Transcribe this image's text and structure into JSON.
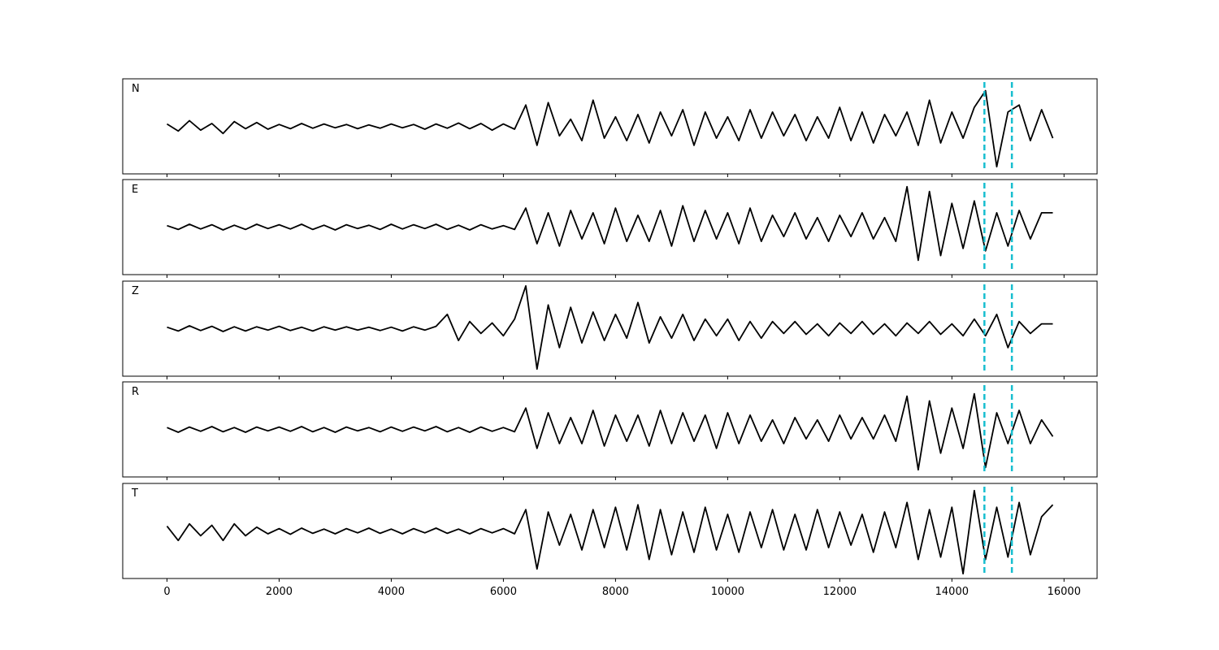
{
  "chart_data": [
    {
      "type": "line",
      "label": "N",
      "color": "#000000",
      "xlim": [
        -790,
        16590
      ],
      "ylim": [
        -1,
        1
      ],
      "vlines": [
        14580,
        15070
      ],
      "vline_color": "#17becf",
      "x": [
        0,
        200,
        400,
        600,
        800,
        1000,
        1200,
        1400,
        1600,
        1800,
        2000,
        2200,
        2400,
        2600,
        2800,
        3000,
        3200,
        3400,
        3600,
        3800,
        4000,
        4200,
        4400,
        4600,
        4800,
        5000,
        5200,
        5400,
        5600,
        5800,
        6000,
        6200,
        6400,
        6600,
        6800,
        7000,
        7200,
        7400,
        7600,
        7800,
        8000,
        8200,
        8400,
        8600,
        8800,
        9000,
        9200,
        9400,
        9600,
        9800,
        10000,
        10200,
        10400,
        10600,
        10800,
        11000,
        11200,
        11400,
        11600,
        11800,
        12000,
        12200,
        12400,
        12600,
        12800,
        13000,
        13200,
        13400,
        13600,
        13800,
        14000,
        14200,
        14400,
        14600,
        14800,
        15000,
        15200,
        15400,
        15600,
        15800
      ],
      "values": [
        0.05,
        -0.1,
        0.12,
        -0.08,
        0.06,
        -0.15,
        0.1,
        -0.05,
        0.08,
        -0.06,
        0.04,
        -0.05,
        0.06,
        -0.04,
        0.05,
        -0.03,
        0.04,
        -0.05,
        0.03,
        -0.04,
        0.05,
        -0.03,
        0.04,
        -0.06,
        0.05,
        -0.04,
        0.07,
        -0.05,
        0.06,
        -0.08,
        0.05,
        -0.06,
        0.45,
        -0.4,
        0.5,
        -0.2,
        0.15,
        -0.3,
        0.55,
        -0.25,
        0.2,
        -0.3,
        0.25,
        -0.35,
        0.3,
        -0.2,
        0.35,
        -0.4,
        0.3,
        -0.25,
        0.2,
        -0.3,
        0.35,
        -0.25,
        0.3,
        -0.2,
        0.25,
        -0.3,
        0.2,
        -0.25,
        0.4,
        -0.3,
        0.3,
        -0.35,
        0.25,
        -0.2,
        0.3,
        -0.4,
        0.55,
        -0.35,
        0.3,
        -0.25,
        0.4,
        0.75,
        -0.85,
        0.3,
        0.45,
        -0.3,
        0.35,
        -0.25
      ]
    },
    {
      "type": "line",
      "label": "E",
      "color": "#000000",
      "xlim": [
        -790,
        16590
      ],
      "ylim": [
        -1,
        1
      ],
      "vlines": [
        14580,
        15070
      ],
      "vline_color": "#17becf",
      "x": [
        0,
        200,
        400,
        600,
        800,
        1000,
        1200,
        1400,
        1600,
        1800,
        2000,
        2200,
        2400,
        2600,
        2800,
        3000,
        3200,
        3400,
        3600,
        3800,
        4000,
        4200,
        4400,
        4600,
        4800,
        5000,
        5200,
        5400,
        5600,
        5800,
        6000,
        6200,
        6400,
        6600,
        6800,
        7000,
        7200,
        7400,
        7600,
        7800,
        8000,
        8200,
        8400,
        8600,
        8800,
        9000,
        9200,
        9400,
        9600,
        9800,
        10000,
        10200,
        10400,
        10600,
        10800,
        11000,
        11200,
        11400,
        11600,
        11800,
        12000,
        12200,
        12400,
        12600,
        12800,
        13000,
        13200,
        13400,
        13600,
        13800,
        14000,
        14200,
        14400,
        14600,
        14800,
        15000,
        15200,
        15400,
        15600,
        15800
      ],
      "values": [
        0.03,
        -0.05,
        0.06,
        -0.04,
        0.05,
        -0.06,
        0.04,
        -0.05,
        0.06,
        -0.03,
        0.05,
        -0.04,
        0.06,
        -0.05,
        0.04,
        -0.06,
        0.05,
        -0.03,
        0.04,
        -0.05,
        0.06,
        -0.04,
        0.05,
        -0.03,
        0.06,
        -0.05,
        0.04,
        -0.06,
        0.05,
        -0.04,
        0.03,
        -0.05,
        0.4,
        -0.35,
        0.3,
        -0.4,
        0.35,
        -0.25,
        0.3,
        -0.35,
        0.4,
        -0.3,
        0.25,
        -0.3,
        0.35,
        -0.4,
        0.45,
        -0.3,
        0.35,
        -0.25,
        0.3,
        -0.35,
        0.4,
        -0.3,
        0.25,
        -0.2,
        0.3,
        -0.25,
        0.2,
        -0.3,
        0.25,
        -0.2,
        0.3,
        -0.25,
        0.2,
        -0.3,
        0.85,
        -0.7,
        0.75,
        -0.6,
        0.5,
        -0.45,
        0.55,
        -0.5,
        0.3,
        -0.4,
        0.35,
        -0.25,
        0.3,
        0.3
      ]
    },
    {
      "type": "line",
      "label": "Z",
      "color": "#000000",
      "xlim": [
        -790,
        16590
      ],
      "ylim": [
        -1,
        1
      ],
      "vlines": [
        14580,
        15070
      ],
      "vline_color": "#17becf",
      "x": [
        0,
        200,
        400,
        600,
        800,
        1000,
        1200,
        1400,
        1600,
        1800,
        2000,
        2200,
        2400,
        2600,
        2800,
        3000,
        3200,
        3400,
        3600,
        3800,
        4000,
        4200,
        4400,
        4600,
        4800,
        5000,
        5200,
        5400,
        5600,
        5800,
        6000,
        6200,
        6400,
        6600,
        6800,
        7000,
        7200,
        7400,
        7600,
        7800,
        8000,
        8200,
        8400,
        8600,
        8800,
        9000,
        9200,
        9400,
        9600,
        9800,
        10000,
        10200,
        10400,
        10600,
        10800,
        11000,
        11200,
        11400,
        11600,
        11800,
        12000,
        12200,
        12400,
        12600,
        12800,
        13000,
        13200,
        13400,
        13600,
        13800,
        14000,
        14200,
        14400,
        14600,
        14800,
        15000,
        15200,
        15400,
        15600,
        15800
      ],
      "values": [
        0.03,
        -0.05,
        0.06,
        -0.04,
        0.05,
        -0.06,
        0.04,
        -0.05,
        0.04,
        -0.03,
        0.05,
        -0.04,
        0.03,
        -0.05,
        0.04,
        -0.03,
        0.04,
        -0.03,
        0.03,
        -0.04,
        0.03,
        -0.05,
        0.04,
        -0.03,
        0.05,
        0.3,
        -0.25,
        0.15,
        -0.1,
        0.12,
        -0.15,
        0.2,
        0.9,
        -0.85,
        0.5,
        -0.4,
        0.45,
        -0.3,
        0.35,
        -0.25,
        0.3,
        -0.2,
        0.55,
        -0.3,
        0.25,
        -0.2,
        0.3,
        -0.25,
        0.2,
        -0.15,
        0.2,
        -0.25,
        0.15,
        -0.2,
        0.15,
        -0.1,
        0.15,
        -0.12,
        0.1,
        -0.15,
        0.12,
        -0.1,
        0.15,
        -0.12,
        0.1,
        -0.15,
        0.12,
        -0.1,
        0.15,
        -0.12,
        0.1,
        -0.15,
        0.2,
        -0.15,
        0.3,
        -0.4,
        0.15,
        -0.1,
        0.1,
        0.1
      ]
    },
    {
      "type": "line",
      "label": "R",
      "color": "#000000",
      "xlim": [
        -790,
        16590
      ],
      "ylim": [
        -1,
        1
      ],
      "vlines": [
        14580,
        15070
      ],
      "vline_color": "#17becf",
      "x": [
        0,
        200,
        400,
        600,
        800,
        1000,
        1200,
        1400,
        1600,
        1800,
        2000,
        2200,
        2400,
        2600,
        2800,
        3000,
        3200,
        3400,
        3600,
        3800,
        4000,
        4200,
        4400,
        4600,
        4800,
        5000,
        5200,
        5400,
        5600,
        5800,
        6000,
        6200,
        6400,
        6600,
        6800,
        7000,
        7200,
        7400,
        7600,
        7800,
        8000,
        8200,
        8400,
        8600,
        8800,
        9000,
        9200,
        9400,
        9600,
        9800,
        10000,
        10200,
        10400,
        10600,
        10800,
        11000,
        11200,
        11400,
        11600,
        11800,
        12000,
        12200,
        12400,
        12600,
        12800,
        13000,
        13200,
        13400,
        13600,
        13800,
        14000,
        14200,
        14400,
        14600,
        14800,
        15000,
        15200,
        15400,
        15600,
        15800
      ],
      "values": [
        0.04,
        -0.06,
        0.05,
        -0.04,
        0.06,
        -0.05,
        0.04,
        -0.06,
        0.05,
        -0.03,
        0.05,
        -0.04,
        0.06,
        -0.05,
        0.04,
        -0.06,
        0.05,
        -0.03,
        0.04,
        -0.05,
        0.05,
        -0.04,
        0.05,
        -0.03,
        0.06,
        -0.05,
        0.04,
        -0.06,
        0.05,
        -0.04,
        0.04,
        -0.05,
        0.45,
        -0.4,
        0.35,
        -0.3,
        0.25,
        -0.3,
        0.4,
        -0.35,
        0.3,
        -0.25,
        0.3,
        -0.35,
        0.4,
        -0.3,
        0.35,
        -0.25,
        0.3,
        -0.4,
        0.35,
        -0.3,
        0.3,
        -0.25,
        0.2,
        -0.3,
        0.25,
        -0.2,
        0.2,
        -0.25,
        0.3,
        -0.2,
        0.25,
        -0.2,
        0.3,
        -0.25,
        0.7,
        -0.85,
        0.6,
        -0.5,
        0.45,
        -0.4,
        0.75,
        -0.8,
        0.35,
        -0.3,
        0.4,
        -0.3,
        0.2,
        -0.15
      ]
    },
    {
      "type": "line",
      "label": "T",
      "color": "#000000",
      "xlim": [
        -790,
        16590
      ],
      "ylim": [
        -1,
        1
      ],
      "vlines": [
        14580,
        15070
      ],
      "vline_color": "#17becf",
      "xticks": [
        0,
        2000,
        4000,
        6000,
        8000,
        10000,
        12000,
        14000,
        16000
      ],
      "x": [
        0,
        200,
        400,
        600,
        800,
        1000,
        1200,
        1400,
        1600,
        1800,
        2000,
        2200,
        2400,
        2600,
        2800,
        3000,
        3200,
        3400,
        3600,
        3800,
        4000,
        4200,
        4400,
        4600,
        4800,
        5000,
        5200,
        5400,
        5600,
        5800,
        6000,
        6200,
        6400,
        6600,
        6800,
        7000,
        7200,
        7400,
        7600,
        7800,
        8000,
        8200,
        8400,
        8600,
        8800,
        9000,
        9200,
        9400,
        9600,
        9800,
        10000,
        10200,
        10400,
        10600,
        10800,
        11000,
        11200,
        11400,
        11600,
        11800,
        12000,
        12200,
        12400,
        12600,
        12800,
        13000,
        13200,
        13400,
        13600,
        13800,
        14000,
        14200,
        14400,
        14600,
        14800,
        15000,
        15200,
        15400,
        15600,
        15800
      ],
      "values": [
        0.1,
        -0.2,
        0.15,
        -0.1,
        0.12,
        -0.2,
        0.15,
        -0.1,
        0.08,
        -0.06,
        0.05,
        -0.07,
        0.06,
        -0.05,
        0.04,
        -0.06,
        0.05,
        -0.04,
        0.06,
        -0.05,
        0.04,
        -0.06,
        0.05,
        -0.04,
        0.06,
        -0.05,
        0.04,
        -0.06,
        0.05,
        -0.04,
        0.05,
        -0.06,
        0.45,
        -0.8,
        0.4,
        -0.3,
        0.35,
        -0.4,
        0.45,
        -0.35,
        0.5,
        -0.4,
        0.55,
        -0.6,
        0.45,
        -0.5,
        0.4,
        -0.45,
        0.5,
        -0.4,
        0.35,
        -0.45,
        0.4,
        -0.35,
        0.45,
        -0.4,
        0.35,
        -0.4,
        0.45,
        -0.35,
        0.4,
        -0.3,
        0.35,
        -0.45,
        0.4,
        -0.35,
        0.6,
        -0.6,
        0.45,
        -0.55,
        0.5,
        -0.9,
        0.85,
        -0.6,
        0.5,
        -0.55,
        0.6,
        -0.5,
        0.3,
        0.55
      ]
    }
  ]
}
